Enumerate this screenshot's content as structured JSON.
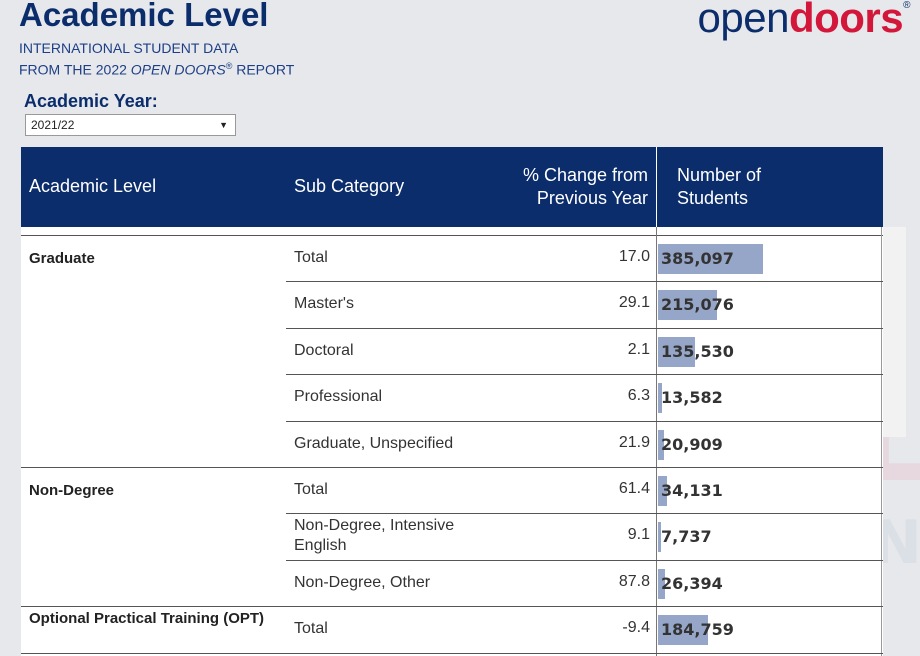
{
  "header": {
    "title": "Academic Level",
    "subtitle_line1": "INTERNATIONAL STUDENT DATA",
    "subtitle_line2_pre": "FROM THE 2022 ",
    "subtitle_line2_italic": "OPEN DOORS",
    "subtitle_line2_reg": "®",
    "subtitle_line2_post": " REPORT"
  },
  "logo": {
    "part1": "open",
    "part2": "doors",
    "reg": "®"
  },
  "filter": {
    "label": "Academic Year:",
    "value": "2021/22"
  },
  "table": {
    "headers": {
      "level": "Academic Level",
      "sub": "Sub Category",
      "pct_line1": "% Change from",
      "pct_line2": "Previous Year",
      "num_line1": "Number of",
      "num_line2": "Students"
    }
  },
  "watermark": {
    "line1": "NEW WORLD",
    "line2": "EDUCATION"
  },
  "chart_data": {
    "type": "table",
    "columns": [
      "Academic Level",
      "Sub Category",
      "% Change from Previous Year",
      "Number of Students"
    ],
    "rows": [
      {
        "level": "Graduate",
        "sub": "Total",
        "pct": "17.0",
        "students": "385,097",
        "value": 385097
      },
      {
        "level": "",
        "sub": "Master's",
        "pct": "29.1",
        "students": "215,076",
        "value": 215076
      },
      {
        "level": "",
        "sub": "Doctoral",
        "pct": "2.1",
        "students": "135,530",
        "value": 135530
      },
      {
        "level": "",
        "sub": "Professional",
        "pct": "6.3",
        "students": "13,582",
        "value": 13582
      },
      {
        "level": "",
        "sub": "Graduate, Unspecified",
        "pct": "21.9",
        "students": "20,909",
        "value": 20909
      },
      {
        "level": "Non-Degree",
        "sub": "Total",
        "pct": "61.4",
        "students": "34,131",
        "value": 34131
      },
      {
        "level": "",
        "sub": "Non-Degree, Intensive English",
        "pct": "9.1",
        "students": "7,737",
        "value": 7737
      },
      {
        "level": "",
        "sub": "Non-Degree, Other",
        "pct": "87.8",
        "students": "26,394",
        "value": 26394
      },
      {
        "level": "Optional Practical Training (OPT)",
        "sub": "Total",
        "pct": "-9.4",
        "students": "184,759",
        "value": 184759
      }
    ],
    "bar_color": "#95a6c8"
  }
}
